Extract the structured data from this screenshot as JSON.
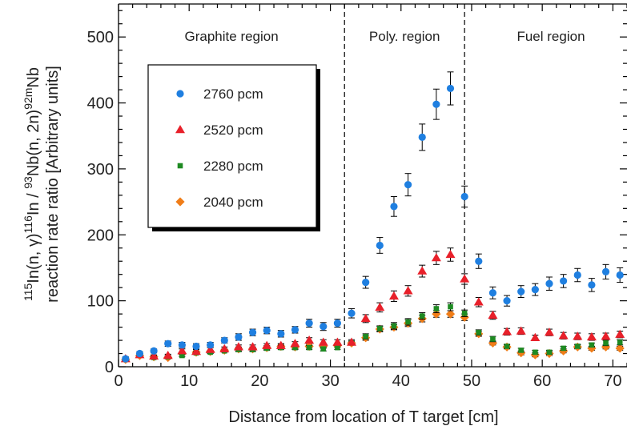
{
  "chart_data": {
    "type": "scatter",
    "xlabel": "Distance from location of T target [cm]",
    "ylabel_line2": "reaction rate ratio [Arbitrary units]",
    "xlim": [
      0,
      72
    ],
    "ylim": [
      0,
      550
    ],
    "x_ticks": [
      0,
      10,
      20,
      30,
      40,
      50,
      60,
      70
    ],
    "y_ticks": [
      0,
      100,
      200,
      300,
      400,
      500
    ],
    "grid": false,
    "legend_position": "upper-left",
    "region_boundaries": [
      32,
      49
    ],
    "regions": [
      {
        "label": "Graphite region"
      },
      {
        "label": "Poly. region"
      },
      {
        "label": "Fuel region"
      }
    ],
    "x": [
      1,
      3,
      5,
      7,
      9,
      11,
      13,
      15,
      17,
      19,
      21,
      23,
      25,
      27,
      29,
      31,
      33,
      35,
      37,
      39,
      41,
      43,
      45,
      47,
      49,
      51,
      53,
      55,
      57,
      59,
      61,
      63,
      65,
      67,
      69,
      71
    ],
    "series": [
      {
        "name": "2760 pcm",
        "color": "#1f7fe0",
        "marker": "circle",
        "values": [
          12,
          20,
          24,
          35,
          33,
          31,
          33,
          40,
          45,
          52,
          55,
          50,
          56,
          66,
          61,
          66,
          81,
          128,
          184,
          243,
          276,
          348,
          398,
          422,
          258,
          160,
          112,
          100,
          114,
          117,
          126,
          130,
          139,
          124,
          144,
          139
        ],
        "errors": [
          3,
          3,
          3,
          4,
          4,
          4,
          4,
          4,
          5,
          5,
          5,
          5,
          5,
          6,
          6,
          6,
          7,
          9,
          12,
          15,
          17,
          20,
          23,
          25,
          16,
          11,
          9,
          8,
          9,
          9,
          10,
          10,
          10,
          10,
          11,
          11
        ]
      },
      {
        "name": "2520 pcm",
        "color": "#e8202a",
        "marker": "triangle",
        "values": [
          12,
          18,
          16,
          17,
          24,
          23,
          26,
          27,
          30,
          30,
          32,
          32,
          35,
          40,
          37,
          37,
          37,
          73,
          90,
          107,
          115,
          145,
          165,
          170,
          133,
          98,
          78,
          53,
          54,
          44,
          52,
          47,
          46,
          45,
          46,
          49
        ],
        "errors": [
          2,
          2,
          2,
          2,
          3,
          3,
          3,
          3,
          3,
          3,
          3,
          3,
          3,
          4,
          4,
          4,
          4,
          6,
          7,
          8,
          8,
          9,
          10,
          10,
          8,
          7,
          6,
          5,
          5,
          4,
          5,
          5,
          5,
          5,
          5,
          5
        ]
      },
      {
        "name": "2280 pcm",
        "color": "#1e8a22",
        "marker": "square",
        "values": [
          11,
          18,
          14,
          15,
          17,
          21,
          22,
          24,
          26,
          26,
          28,
          29,
          29,
          29,
          27,
          29,
          36,
          46,
          58,
          62,
          68,
          77,
          88,
          91,
          81,
          52,
          42,
          31,
          25,
          22,
          22,
          28,
          31,
          33,
          36,
          37
        ],
        "errors": [
          2,
          2,
          2,
          2,
          2,
          2,
          2,
          2,
          3,
          3,
          3,
          3,
          3,
          3,
          3,
          3,
          3,
          4,
          4,
          5,
          5,
          5,
          6,
          6,
          5,
          4,
          4,
          3,
          3,
          3,
          3,
          3,
          3,
          3,
          4,
          4
        ]
      },
      {
        "name": "2040 pcm",
        "color": "#f07d18",
        "marker": "diamond",
        "values": [
          11,
          17,
          15,
          14,
          20,
          22,
          23,
          25,
          27,
          27,
          29,
          31,
          30,
          31,
          31,
          32,
          36,
          44,
          57,
          60,
          66,
          73,
          80,
          80,
          75,
          50,
          36,
          30,
          21,
          18,
          20,
          24,
          30,
          28,
          30,
          28
        ],
        "errors": [
          2,
          2,
          2,
          2,
          2,
          2,
          2,
          2,
          3,
          3,
          3,
          3,
          3,
          3,
          3,
          3,
          3,
          4,
          4,
          4,
          5,
          5,
          5,
          5,
          5,
          4,
          3,
          3,
          3,
          3,
          3,
          3,
          3,
          3,
          3,
          3
        ]
      }
    ]
  }
}
